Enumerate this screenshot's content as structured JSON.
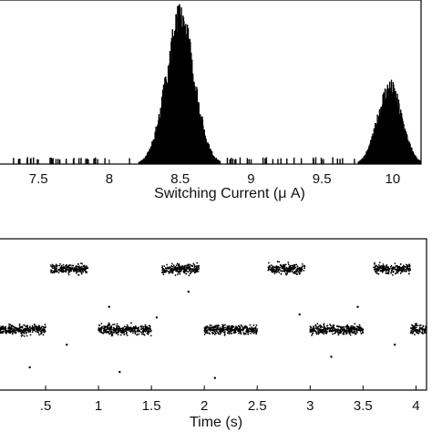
{
  "chart_data": [
    {
      "type": "bar",
      "xlabel": "Switching Current (μ A)",
      "ylabel": "",
      "xlim": [
        7.1,
        10.2
      ],
      "ylim": [
        0,
        1
      ],
      "grid": false,
      "xticks": [
        7.5,
        8,
        8.5,
        9,
        9.5,
        10
      ],
      "xtick_labels": [
        "7.5",
        "8",
        "8.5",
        "9",
        "9.5",
        "10"
      ],
      "peaks": [
        {
          "center": 8.5,
          "width": 0.1,
          "height": 0.98
        },
        {
          "center": 9.98,
          "width": 0.085,
          "height": 0.52
        }
      ],
      "sparse_range": [
        7.3,
        10.2
      ]
    },
    {
      "type": "scatter",
      "xlabel": "Time (s)",
      "ylabel": "",
      "xlim": [
        0,
        4.1
      ],
      "ylim": [
        0,
        1
      ],
      "grid": false,
      "xticks": [
        0.5,
        1,
        1.5,
        2,
        2.5,
        3,
        3.5,
        4
      ],
      "xtick_labels": [
        ".5",
        "1",
        "1.5",
        "2",
        "2.5",
        "3",
        "3.5",
        "4"
      ],
      "series": [
        {
          "level": "upper",
          "y": 0.8,
          "segments": [
            [
              0.55,
              0.9
            ],
            [
              1.6,
              1.95
            ],
            [
              2.6,
              2.95
            ],
            [
              3.6,
              3.95
            ]
          ]
        },
        {
          "level": "lower",
          "y": 0.4,
          "segments": [
            [
              0.0,
              0.5
            ],
            [
              1.0,
              1.5
            ],
            [
              2.0,
              2.5
            ],
            [
              3.0,
              3.5
            ],
            [
              3.95,
              4.1
            ]
          ]
        }
      ],
      "outliers": [
        {
          "x": 0.35,
          "y": 0.15
        },
        {
          "x": 0.7,
          "y": 0.3
        },
        {
          "x": 1.1,
          "y": 0.55
        },
        {
          "x": 1.2,
          "y": 0.12
        },
        {
          "x": 1.55,
          "y": 0.48
        },
        {
          "x": 1.85,
          "y": 0.65
        },
        {
          "x": 2.1,
          "y": 0.08
        },
        {
          "x": 2.9,
          "y": 0.5
        },
        {
          "x": 3.2,
          "y": 0.22
        },
        {
          "x": 3.45,
          "y": 0.55
        },
        {
          "x": 3.8,
          "y": 0.3
        }
      ]
    }
  ]
}
